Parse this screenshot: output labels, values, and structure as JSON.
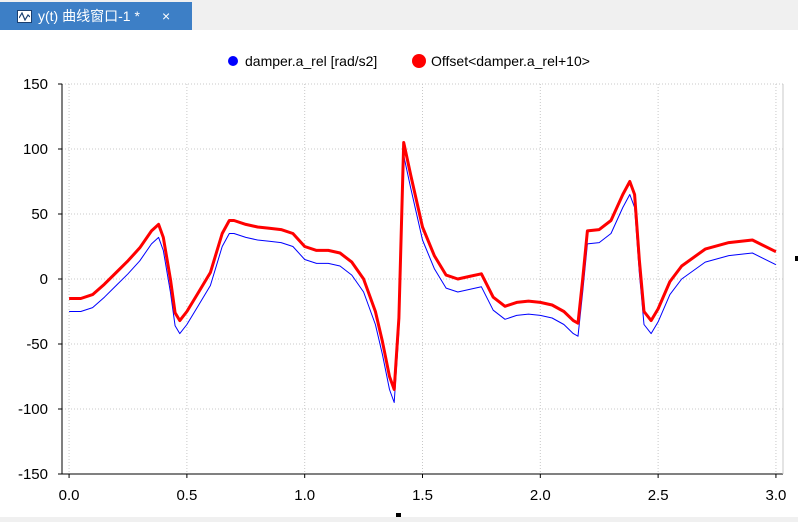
{
  "window": {
    "tab_title": "y(t) 曲线窗口-1 *",
    "tab_close": "×",
    "tab_icon": "plot-window-icon",
    "tab_color": "#3d7fc6"
  },
  "chart_data": {
    "type": "line",
    "title": "",
    "xlabel": "",
    "ylabel": "",
    "xlim": [
      -0.03,
      3.03
    ],
    "ylim": [
      -150,
      150
    ],
    "x_ticks": [
      0.0,
      0.5,
      1.0,
      1.5,
      2.0,
      2.5,
      3.0
    ],
    "x_tick_labels": [
      "0.0",
      "0.5",
      "1.0",
      "1.5",
      "2.0",
      "2.5",
      "3.0"
    ],
    "y_ticks": [
      150,
      100,
      50,
      0,
      -50,
      -100,
      -150
    ],
    "y_tick_labels": [
      "150",
      "100",
      "50",
      "0",
      "-50",
      "-100",
      "-150"
    ],
    "grid": true,
    "legend_position": "top-center",
    "series": [
      {
        "name": "damper.a_rel [rad/s2]",
        "color": "#0000ff",
        "x": [
          0,
          0.05,
          0.1,
          0.15,
          0.2,
          0.25,
          0.3,
          0.35,
          0.38,
          0.4,
          0.43,
          0.45,
          0.47,
          0.5,
          0.55,
          0.6,
          0.65,
          0.68,
          0.7,
          0.75,
          0.8,
          0.85,
          0.9,
          0.95,
          1.0,
          1.05,
          1.1,
          1.15,
          1.2,
          1.25,
          1.3,
          1.33,
          1.36,
          1.38,
          1.4,
          1.42,
          1.45,
          1.5,
          1.55,
          1.6,
          1.65,
          1.7,
          1.75,
          1.8,
          1.85,
          1.9,
          1.95,
          2.0,
          2.05,
          2.1,
          2.14,
          2.16,
          2.18,
          2.2,
          2.25,
          2.3,
          2.35,
          2.38,
          2.4,
          2.42,
          2.44,
          2.47,
          2.5,
          2.55,
          2.6,
          2.7,
          2.8,
          2.9,
          3.0
        ],
        "y": [
          -25,
          -25,
          -22,
          -14,
          -5,
          4,
          14,
          27,
          32,
          22,
          -10,
          -36,
          -42,
          -35,
          -20,
          -5,
          25,
          35,
          35,
          32,
          30,
          29,
          28,
          25,
          15,
          12,
          12,
          10,
          3,
          -10,
          -35,
          -58,
          -85,
          -95,
          -40,
          95,
          70,
          30,
          8,
          -7,
          -10,
          -8,
          -6,
          -24,
          -31,
          -28,
          -27,
          -28,
          -30,
          -35,
          -42,
          -44,
          -10,
          27,
          28,
          35,
          55,
          65,
          55,
          5,
          -35,
          -42,
          -33,
          -12,
          0,
          13,
          18,
          20,
          11
        ]
      },
      {
        "name": "Offset<damper.a_rel+10>",
        "color": "#ff0000",
        "x": [
          0,
          0.05,
          0.1,
          0.15,
          0.2,
          0.25,
          0.3,
          0.35,
          0.38,
          0.4,
          0.43,
          0.45,
          0.47,
          0.5,
          0.55,
          0.6,
          0.65,
          0.68,
          0.7,
          0.75,
          0.8,
          0.85,
          0.9,
          0.95,
          1.0,
          1.05,
          1.1,
          1.15,
          1.2,
          1.25,
          1.3,
          1.33,
          1.36,
          1.38,
          1.4,
          1.42,
          1.45,
          1.5,
          1.55,
          1.6,
          1.65,
          1.7,
          1.75,
          1.8,
          1.85,
          1.9,
          1.95,
          2.0,
          2.05,
          2.1,
          2.14,
          2.16,
          2.18,
          2.2,
          2.25,
          2.3,
          2.35,
          2.38,
          2.4,
          2.42,
          2.44,
          2.47,
          2.5,
          2.55,
          2.6,
          2.7,
          2.8,
          2.9,
          3.0
        ],
        "y": [
          -15,
          -15,
          -12,
          -4,
          5,
          14,
          24,
          37,
          42,
          32,
          0,
          -26,
          -32,
          -25,
          -10,
          5,
          35,
          45,
          45,
          42,
          40,
          39,
          38,
          35,
          25,
          22,
          22,
          20,
          13,
          0,
          -25,
          -48,
          -75,
          -85,
          -30,
          105,
          80,
          40,
          18,
          3,
          0,
          2,
          4,
          -14,
          -21,
          -18,
          -17,
          -18,
          -20,
          -25,
          -32,
          -34,
          0,
          37,
          38,
          45,
          65,
          75,
          65,
          15,
          -25,
          -32,
          -23,
          -2,
          10,
          23,
          28,
          30,
          21
        ]
      }
    ]
  }
}
